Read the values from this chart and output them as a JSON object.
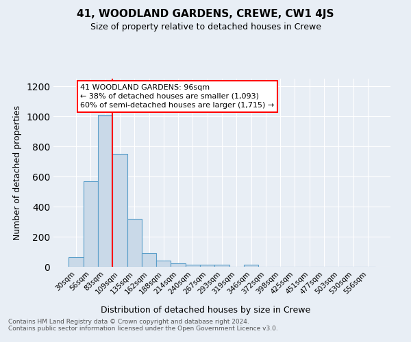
{
  "title": "41, WOODLAND GARDENS, CREWE, CW1 4JS",
  "subtitle": "Size of property relative to detached houses in Crewe",
  "xlabel": "Distribution of detached houses by size in Crewe",
  "ylabel": "Number of detached properties",
  "bar_labels": [
    "30sqm",
    "56sqm",
    "83sqm",
    "109sqm",
    "135sqm",
    "162sqm",
    "188sqm",
    "214sqm",
    "240sqm",
    "267sqm",
    "293sqm",
    "319sqm",
    "346sqm",
    "372sqm",
    "398sqm",
    "425sqm",
    "451sqm",
    "477sqm",
    "503sqm",
    "530sqm",
    "556sqm"
  ],
  "bar_values": [
    65,
    570,
    1010,
    750,
    320,
    90,
    43,
    25,
    12,
    12,
    12,
    0,
    12,
    0,
    0,
    0,
    0,
    0,
    0,
    0,
    0
  ],
  "bar_color": "#c9d9e8",
  "bar_edge_color": "#5a9ec9",
  "red_line_x": 2.5,
  "annotation_text": "41 WOODLAND GARDENS: 96sqm\n← 38% of detached houses are smaller (1,093)\n60% of semi-detached houses are larger (1,715) →",
  "annotation_box_color": "white",
  "annotation_box_edge_color": "red",
  "ylim": [
    0,
    1250
  ],
  "yticks": [
    0,
    200,
    400,
    600,
    800,
    1000,
    1200
  ],
  "footer_text": "Contains HM Land Registry data © Crown copyright and database right 2024.\nContains public sector information licensed under the Open Government Licence v3.0.",
  "background_color": "#e8eef5",
  "plot_background_color": "#e8eef5"
}
